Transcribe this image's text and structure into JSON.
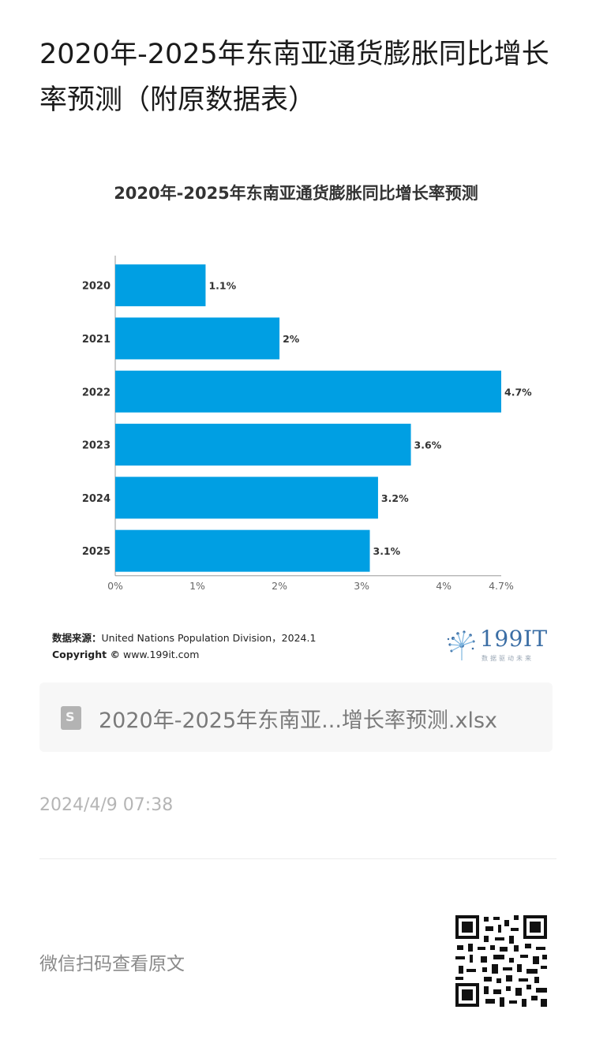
{
  "article": {
    "title": "2020年-2025年东南亚通货膨胀同比增长率预测（附原数据表）"
  },
  "chart_data": {
    "type": "bar",
    "orientation": "horizontal",
    "title": "2020年-2025年东南亚通货膨胀同比增长率预测",
    "categories": [
      "2020",
      "2021",
      "2022",
      "2023",
      "2024",
      "2025"
    ],
    "values": [
      1.1,
      2,
      4.7,
      3.6,
      3.2,
      3.1
    ],
    "value_labels": [
      "1.1%",
      "2%",
      "4.7%",
      "3.6%",
      "3.2%",
      "3.1%"
    ],
    "xticks": [
      0,
      1,
      2,
      3,
      4,
      4.7
    ],
    "xtick_labels": [
      "0%",
      "1%",
      "2%",
      "3%",
      "4%",
      "4.7%"
    ],
    "xlim": [
      0,
      4.7
    ],
    "xlabel": "",
    "ylabel": "",
    "grid": false,
    "bar_color": "#009fe3"
  },
  "chart_footer": {
    "source_label": "数据来源：",
    "source_text": "United Nations Population Division，2024.1",
    "copyright_label": "Copyright ©",
    "copyright_text": "www.199it.com"
  },
  "brand": {
    "name": "199IT",
    "slogan": "数据驱动未来",
    "color": "#3b6ea5"
  },
  "attachment": {
    "icon": "spreadsheet-file-icon",
    "icon_letter": "S",
    "filename": "2020年-2025年东南亚...增长率预测.xlsx"
  },
  "meta": {
    "timestamp": "2024/4/9 07:38"
  },
  "footer": {
    "qr_label": "微信扫码查看原文",
    "qr_icon": "qr-code-icon"
  }
}
